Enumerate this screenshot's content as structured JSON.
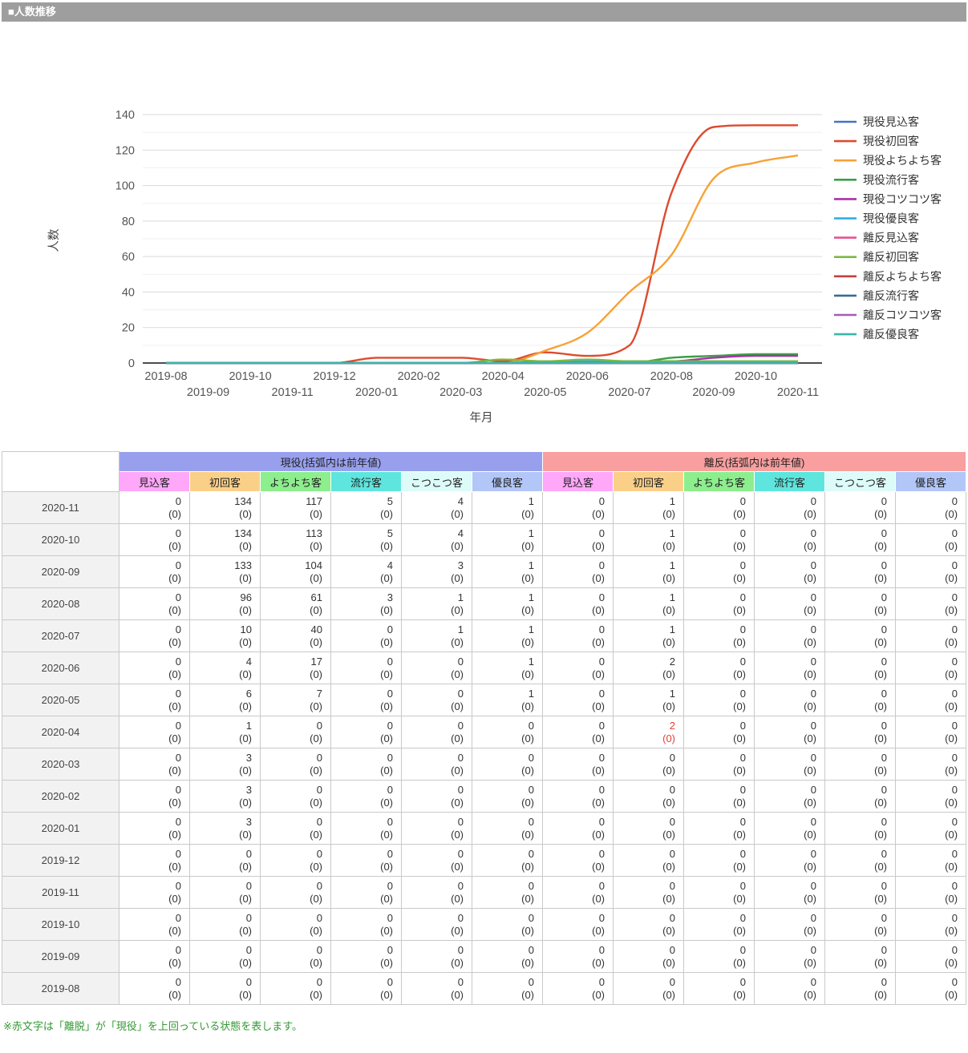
{
  "header": {
    "title": "■人数推移",
    "bg": "#9e9e9e"
  },
  "chart_data": {
    "type": "line",
    "title": "",
    "xlabel": "年月",
    "ylabel": "人数",
    "ylim": [
      0,
      140
    ],
    "ytick_step": 20,
    "minor_grid_step": 10,
    "grid": "on",
    "legend_position": "right",
    "x": [
      "2019-08",
      "2019-09",
      "2019-10",
      "2019-11",
      "2019-12",
      "2020-01",
      "2020-02",
      "2020-03",
      "2020-04",
      "2020-05",
      "2020-06",
      "2020-07",
      "2020-08",
      "2020-09",
      "2020-10",
      "2020-11"
    ],
    "series": [
      {
        "id": "geneki-mikomi",
        "name": "現役見込客",
        "color": "#4472c8",
        "values": [
          0,
          0,
          0,
          0,
          0,
          0,
          0,
          0,
          0,
          0,
          0,
          0,
          0,
          0,
          0,
          0
        ]
      },
      {
        "id": "geneki-shokai",
        "name": "現役初回客",
        "color": "#dd4b2f",
        "values": [
          0,
          0,
          0,
          0,
          0,
          3,
          3,
          3,
          1,
          6,
          4,
          10,
          96,
          133,
          134,
          134
        ]
      },
      {
        "id": "geneki-yochiyochi",
        "name": "現役よちよち客",
        "color": "#f7a236",
        "values": [
          0,
          0,
          0,
          0,
          0,
          0,
          0,
          0,
          0,
          7,
          17,
          40,
          61,
          104,
          113,
          117
        ]
      },
      {
        "id": "geneki-ryuko",
        "name": "現役流行客",
        "color": "#3c9e47",
        "values": [
          0,
          0,
          0,
          0,
          0,
          0,
          0,
          0,
          0,
          0,
          0,
          0,
          3,
          4,
          5,
          5
        ]
      },
      {
        "id": "geneki-kotsukotsu",
        "name": "現役コツコツ客",
        "color": "#a832a8",
        "values": [
          0,
          0,
          0,
          0,
          0,
          0,
          0,
          0,
          0,
          0,
          0,
          1,
          1,
          3,
          4,
          4
        ]
      },
      {
        "id": "geneki-yuryo",
        "name": "現役優良客",
        "color": "#29abe2",
        "values": [
          0,
          0,
          0,
          0,
          0,
          0,
          0,
          0,
          0,
          1,
          1,
          1,
          1,
          1,
          1,
          1
        ]
      },
      {
        "id": "rihan-mikomi",
        "name": "離反見込客",
        "color": "#e8538f",
        "values": [
          0,
          0,
          0,
          0,
          0,
          0,
          0,
          0,
          0,
          0,
          0,
          0,
          0,
          0,
          0,
          0
        ]
      },
      {
        "id": "rihan-shokai",
        "name": "離反初回客",
        "color": "#7cb93f",
        "values": [
          0,
          0,
          0,
          0,
          0,
          0,
          0,
          0,
          2,
          1,
          2,
          1,
          1,
          1,
          1,
          1
        ]
      },
      {
        "id": "rihan-yochiyochi",
        "name": "離反よちよち客",
        "color": "#c24043",
        "values": [
          0,
          0,
          0,
          0,
          0,
          0,
          0,
          0,
          0,
          0,
          0,
          0,
          0,
          0,
          0,
          0
        ]
      },
      {
        "id": "rihan-ryuko",
        "name": "離反流行客",
        "color": "#3a6a96",
        "values": [
          0,
          0,
          0,
          0,
          0,
          0,
          0,
          0,
          0,
          0,
          0,
          0,
          0,
          0,
          0,
          0
        ]
      },
      {
        "id": "rihan-kotsukotsu",
        "name": "離反コツコツ客",
        "color": "#a65bb5",
        "values": [
          0,
          0,
          0,
          0,
          0,
          0,
          0,
          0,
          0,
          0,
          0,
          0,
          0,
          0,
          0,
          0
        ]
      },
      {
        "id": "rihan-yuryo",
        "name": "離反優良客",
        "color": "#3ab5ab",
        "values": [
          0,
          0,
          0,
          0,
          0,
          0,
          0,
          0,
          0,
          0,
          0,
          0,
          0,
          0,
          0,
          0
        ]
      }
    ]
  },
  "table": {
    "groups": [
      {
        "id": "geneki",
        "label": "現役(括弧内は前年値)",
        "bg": "#98a0ee"
      },
      {
        "id": "rihan",
        "label": "離反(括弧内は前年値)",
        "bg": "#f99f9f"
      }
    ],
    "columns": [
      {
        "label": "見込客",
        "bg": "#ffa7f9"
      },
      {
        "label": "初回客",
        "bg": "#fad089"
      },
      {
        "label": "よちよち客",
        "bg": "#8dee8d"
      },
      {
        "label": "流行客",
        "bg": "#5ee6de"
      },
      {
        "label": "こつこつ客",
        "bg": "#dcfbf9"
      },
      {
        "label": "優良客",
        "bg": "#b3c6f8"
      }
    ],
    "prev_display": "(0)",
    "highlight_color": "#e04338",
    "rows": [
      {
        "date": "2020-11",
        "values": [
          0,
          134,
          117,
          5,
          4,
          1,
          0,
          1,
          0,
          0,
          0,
          0
        ],
        "red": []
      },
      {
        "date": "2020-10",
        "values": [
          0,
          134,
          113,
          5,
          4,
          1,
          0,
          1,
          0,
          0,
          0,
          0
        ],
        "red": []
      },
      {
        "date": "2020-09",
        "values": [
          0,
          133,
          104,
          4,
          3,
          1,
          0,
          1,
          0,
          0,
          0,
          0
        ],
        "red": []
      },
      {
        "date": "2020-08",
        "values": [
          0,
          96,
          61,
          3,
          1,
          1,
          0,
          1,
          0,
          0,
          0,
          0
        ],
        "red": []
      },
      {
        "date": "2020-07",
        "values": [
          0,
          10,
          40,
          0,
          1,
          1,
          0,
          1,
          0,
          0,
          0,
          0
        ],
        "red": []
      },
      {
        "date": "2020-06",
        "values": [
          0,
          4,
          17,
          0,
          0,
          1,
          0,
          2,
          0,
          0,
          0,
          0
        ],
        "red": []
      },
      {
        "date": "2020-05",
        "values": [
          0,
          6,
          7,
          0,
          0,
          1,
          0,
          1,
          0,
          0,
          0,
          0
        ],
        "red": []
      },
      {
        "date": "2020-04",
        "values": [
          0,
          1,
          0,
          0,
          0,
          0,
          0,
          2,
          0,
          0,
          0,
          0
        ],
        "red": [
          7
        ]
      },
      {
        "date": "2020-03",
        "values": [
          0,
          3,
          0,
          0,
          0,
          0,
          0,
          0,
          0,
          0,
          0,
          0
        ],
        "red": []
      },
      {
        "date": "2020-02",
        "values": [
          0,
          3,
          0,
          0,
          0,
          0,
          0,
          0,
          0,
          0,
          0,
          0
        ],
        "red": []
      },
      {
        "date": "2020-01",
        "values": [
          0,
          3,
          0,
          0,
          0,
          0,
          0,
          0,
          0,
          0,
          0,
          0
        ],
        "red": []
      },
      {
        "date": "2019-12",
        "values": [
          0,
          0,
          0,
          0,
          0,
          0,
          0,
          0,
          0,
          0,
          0,
          0
        ],
        "red": []
      },
      {
        "date": "2019-11",
        "values": [
          0,
          0,
          0,
          0,
          0,
          0,
          0,
          0,
          0,
          0,
          0,
          0
        ],
        "red": []
      },
      {
        "date": "2019-10",
        "values": [
          0,
          0,
          0,
          0,
          0,
          0,
          0,
          0,
          0,
          0,
          0,
          0
        ],
        "red": []
      },
      {
        "date": "2019-09",
        "values": [
          0,
          0,
          0,
          0,
          0,
          0,
          0,
          0,
          0,
          0,
          0,
          0
        ],
        "red": []
      },
      {
        "date": "2019-08",
        "values": [
          0,
          0,
          0,
          0,
          0,
          0,
          0,
          0,
          0,
          0,
          0,
          0
        ],
        "red": []
      }
    ]
  },
  "footnote": {
    "text": "※赤文字は「離脱」が「現役」を上回っている状態を表します。",
    "color": "#339933"
  }
}
